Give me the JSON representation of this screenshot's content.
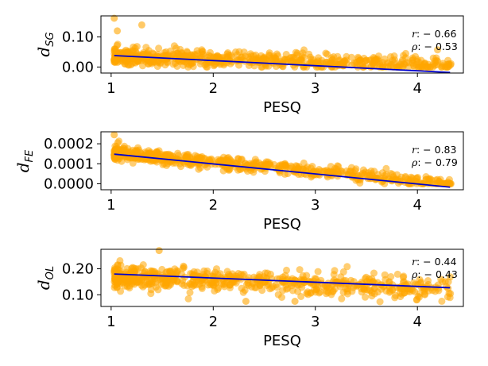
{
  "chart_data": [
    {
      "type": "scatter",
      "panel": "sg",
      "xlabel": "PESQ",
      "ylabel_main": "d",
      "ylabel_sub": "SG",
      "xlim": [
        0.9,
        4.45
      ],
      "ylim": [
        -0.02,
        0.17
      ],
      "xticks": [
        {
          "v": 1,
          "label": "1"
        },
        {
          "v": 2,
          "label": "2"
        },
        {
          "v": 3,
          "label": "3"
        },
        {
          "v": 4,
          "label": "4"
        }
      ],
      "yticks": [
        {
          "v": 0.0,
          "label": "0.00"
        },
        {
          "v": 0.1,
          "label": "0.10"
        }
      ],
      "fit": {
        "x": [
          1.03,
          4.32
        ],
        "y": [
          0.038,
          -0.018
        ]
      },
      "trend": {
        "a": 0.044,
        "b": -0.0085,
        "noise": 0.013,
        "min": 0.0,
        "max": 0.165,
        "seed": 7
      },
      "series_color": "#FFA500",
      "fit_color": "#0000CC",
      "stats": {
        "r_sym": "r",
        "r_value": ": − 0.66",
        "rho_sym": "ρ",
        "rho_value": ": − 0.53"
      },
      "outliers": [
        {
          "x": 1.03,
          "y": 0.162
        },
        {
          "x": 1.06,
          "y": 0.12
        },
        {
          "x": 1.3,
          "y": 0.14
        }
      ]
    },
    {
      "type": "scatter",
      "panel": "fe",
      "xlabel": "PESQ",
      "ylabel_main": "d",
      "ylabel_sub": "FE",
      "xlim": [
        0.9,
        4.45
      ],
      "ylim": [
        -3e-05,
        0.00026
      ],
      "xticks": [
        {
          "v": 1,
          "label": "1"
        },
        {
          "v": 2,
          "label": "2"
        },
        {
          "v": 3,
          "label": "3"
        },
        {
          "v": 4,
          "label": "4"
        }
      ],
      "yticks": [
        {
          "v": 0.0,
          "label": "0.0000"
        },
        {
          "v": 0.0001,
          "label": "0.0001"
        },
        {
          "v": 0.0002,
          "label": "0.0002"
        }
      ],
      "fit": {
        "x": [
          1.03,
          4.32
        ],
        "y": [
          0.000148,
          -1.7e-05
        ]
      },
      "trend": {
        "a": 0.000204,
        "b": -4.76e-05,
        "noise": 1.7e-05,
        "min": 0.0,
        "max": 0.00025,
        "seed": 11
      },
      "series_color": "#FFA500",
      "fit_color": "#0000CC",
      "stats": {
        "r_sym": "r",
        "r_value": ": − 0.83",
        "rho_sym": "ρ",
        "rho_value": ": − 0.79"
      },
      "outliers": [
        {
          "x": 1.03,
          "y": 0.000245
        },
        {
          "x": 4.3,
          "y": 8e-06
        }
      ]
    },
    {
      "type": "scatter",
      "panel": "ol",
      "xlabel": "PESQ",
      "ylabel_main": "d",
      "ylabel_sub": "OL",
      "xlim": [
        0.9,
        4.45
      ],
      "ylim": [
        0.055,
        0.275
      ],
      "xticks": [
        {
          "v": 1,
          "label": "1"
        },
        {
          "v": 2,
          "label": "2"
        },
        {
          "v": 3,
          "label": "3"
        },
        {
          "v": 4,
          "label": "4"
        }
      ],
      "yticks": [
        {
          "v": 0.1,
          "label": "0.10"
        },
        {
          "v": 0.2,
          "label": "0.20"
        }
      ],
      "fit": {
        "x": [
          1.03,
          4.32
        ],
        "y": [
          0.18,
          0.127
        ]
      },
      "trend": {
        "a": 0.188,
        "b": -0.0155,
        "noise": 0.021,
        "min": 0.07,
        "max": 0.27,
        "seed": 23
      },
      "series_color": "#FFA500",
      "fit_color": "#0000CC",
      "stats": {
        "r_sym": "r",
        "r_value": ": − 0.44",
        "rho_sym": "ρ",
        "rho_value": ": − 0.43"
      },
      "outliers": [
        {
          "x": 1.47,
          "y": 0.27
        },
        {
          "x": 2.32,
          "y": 0.075
        },
        {
          "x": 2.8,
          "y": 0.075
        },
        {
          "x": 4.3,
          "y": 0.125
        }
      ]
    }
  ]
}
